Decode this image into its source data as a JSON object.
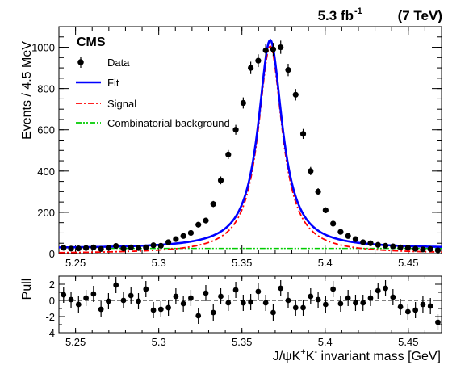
{
  "header": {
    "lumi": "5.3 fb",
    "lumi_exp": "-1",
    "energy": "(7 TeV)",
    "experiment": "CMS"
  },
  "chart_data": [
    {
      "type": "scatter",
      "role": "main",
      "ylabel": "Events / 4.5 MeV",
      "xlim": [
        5.24,
        5.47
      ],
      "ylim": [
        0,
        1100
      ],
      "xticks": [
        "5.25",
        "5.3",
        "5.35",
        "5.4",
        "5.45"
      ],
      "yticks": [
        "0",
        "200",
        "400",
        "600",
        "800",
        "1000"
      ],
      "legend": {
        "placement": "top-left",
        "entries": [
          {
            "label": "Data",
            "style": "marker",
            "color": "#000000"
          },
          {
            "label": "Fit",
            "style": "solid",
            "color": "#0000ff"
          },
          {
            "label": "Signal",
            "style": "dash-dot",
            "color": "#ff0000"
          },
          {
            "label": "Combinatorial background",
            "style": "dash-dot-dot",
            "color": "#00cc00"
          }
        ]
      },
      "series": [
        {
          "name": "Data",
          "x": [
            5.2428,
            5.2473,
            5.2518,
            5.2563,
            5.2608,
            5.2653,
            5.2698,
            5.2743,
            5.2788,
            5.2833,
            5.2878,
            5.2923,
            5.2968,
            5.3013,
            5.3058,
            5.3103,
            5.3148,
            5.3193,
            5.3238,
            5.3283,
            5.3328,
            5.3373,
            5.3418,
            5.3463,
            5.3508,
            5.3553,
            5.3598,
            5.3643,
            5.3688,
            5.3733,
            5.3778,
            5.3823,
            5.3868,
            5.3913,
            5.3958,
            5.4003,
            5.4048,
            5.4093,
            5.4138,
            5.4183,
            5.4228,
            5.4273,
            5.4318,
            5.4363,
            5.4408,
            5.4453,
            5.4498,
            5.4543,
            5.4588,
            5.4633,
            5.4678
          ],
          "y": [
            28,
            24,
            25,
            27,
            30,
            22,
            28,
            37,
            25,
            30,
            27,
            30,
            40,
            38,
            55,
            70,
            85,
            100,
            140,
            160,
            240,
            355,
            480,
            600,
            730,
            900,
            935,
            985,
            990,
            1000,
            890,
            770,
            580,
            400,
            300,
            210,
            145,
            105,
            85,
            70,
            55,
            50,
            42,
            38,
            35,
            30,
            28,
            23,
            20,
            22,
            16
          ],
          "yerr": [
            5,
            5,
            5,
            5,
            5,
            5,
            5,
            6,
            5,
            5,
            5,
            5,
            6,
            6,
            7,
            8,
            9,
            10,
            12,
            13,
            15,
            19,
            22,
            24,
            27,
            30,
            31,
            31,
            31,
            32,
            30,
            28,
            24,
            20,
            17,
            14,
            12,
            10,
            9,
            8,
            7,
            7,
            6,
            6,
            6,
            5,
            5,
            5,
            4,
            5,
            4
          ]
        },
        {
          "name": "Fit",
          "model": "Breit-Wigner peak + flat background",
          "peak_x": 5.367,
          "peak_y": 1035,
          "width": 0.0088,
          "baseline": 25
        },
        {
          "name": "Signal",
          "model": "Breit-Wigner peak",
          "peak_x": 5.367,
          "peak_y": 1005,
          "width": 0.0088,
          "baseline": 0
        },
        {
          "name": "Combinatorial background",
          "model": "flat",
          "value": 25
        }
      ]
    },
    {
      "type": "scatter",
      "role": "pull",
      "ylabel": "Pull",
      "xlabel": "J/ψK⁺K⁻ invariant mass [GeV]",
      "xlabel_parts": {
        "a": "J/ψK",
        "b": "+",
        "c": "K",
        "d": "-",
        "e": " invariant mass [GeV]"
      },
      "xlim": [
        5.24,
        5.47
      ],
      "ylim": [
        -4,
        3
      ],
      "xticks": [
        "5.25",
        "5.3",
        "5.35",
        "5.4",
        "5.45"
      ],
      "yticks": [
        "-4",
        "-2",
        "0",
        "2"
      ],
      "reference_line": 0,
      "series": [
        {
          "name": "Pull",
          "x": [
            5.2428,
            5.2473,
            5.2518,
            5.2563,
            5.2608,
            5.2653,
            5.2698,
            5.2743,
            5.2788,
            5.2833,
            5.2878,
            5.2923,
            5.2968,
            5.3013,
            5.3058,
            5.3103,
            5.3148,
            5.3193,
            5.3238,
            5.3283,
            5.3328,
            5.3373,
            5.3418,
            5.3463,
            5.3508,
            5.3553,
            5.3598,
            5.3643,
            5.3688,
            5.3733,
            5.3778,
            5.3823,
            5.3868,
            5.3913,
            5.3958,
            5.4003,
            5.4048,
            5.4093,
            5.4138,
            5.4183,
            5.4228,
            5.4273,
            5.4318,
            5.4363,
            5.4408,
            5.4453,
            5.4498,
            5.4543,
            5.4588,
            5.4633,
            5.4678
          ],
          "y": [
            0.7,
            0.1,
            -0.5,
            0.3,
            0.8,
            -1.1,
            -0.1,
            1.9,
            0,
            0.6,
            -0.1,
            1.4,
            -1.2,
            -1.1,
            -0.9,
            0.5,
            -0.4,
            0.3,
            -1.9,
            0.9,
            -1.5,
            0.5,
            -0.3,
            1.3,
            -0.3,
            -0.2,
            1.1,
            -0.3,
            -1.5,
            1.5,
            0,
            -0.9,
            -0.9,
            0.5,
            0.1,
            -0.5,
            1.4,
            -0.4,
            0.3,
            -0.3,
            -0.3,
            0.3,
            1.2,
            1.5,
            0.4,
            -0.8,
            -1.4,
            -1.2,
            -0.5,
            -0.7,
            -2.7
          ],
          "yerr": [
            1,
            1,
            1,
            1,
            1,
            1,
            1,
            1,
            1,
            1,
            1,
            1,
            1,
            1,
            1,
            1,
            1,
            1,
            1,
            1,
            1,
            1,
            1,
            1,
            1,
            1,
            1,
            1,
            1,
            1,
            1,
            1,
            1,
            1,
            1,
            1,
            1,
            1,
            1,
            1,
            1,
            1,
            1,
            1,
            1,
            1,
            1,
            1,
            1,
            1,
            1
          ]
        }
      ]
    }
  ]
}
